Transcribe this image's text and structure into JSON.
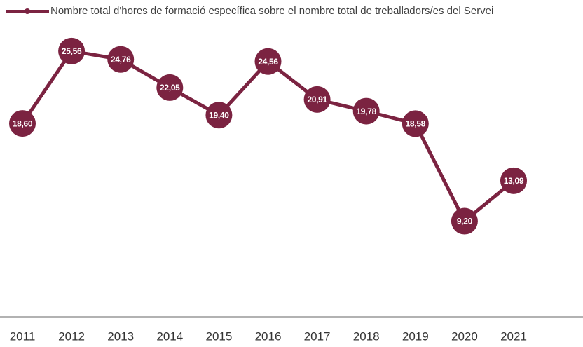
{
  "chart_data": {
    "type": "line",
    "categories": [
      "2011",
      "2012",
      "2013",
      "2014",
      "2015",
      "2016",
      "2017",
      "2018",
      "2019",
      "2020",
      "2021"
    ],
    "series": [
      {
        "name": "Nombre total d'hores de formació específica sobre el nombre total de treballadors/es del Servei",
        "color": "#7b2341",
        "values": [
          18.6,
          25.56,
          24.76,
          22.05,
          19.4,
          24.56,
          20.91,
          19.78,
          18.58,
          9.2,
          13.09
        ],
        "value_labels": [
          "18,60",
          "25,56",
          "24,76",
          "22,05",
          "19,40",
          "24,56",
          "20,91",
          "19,78",
          "18,58",
          "9,20",
          "13,09"
        ]
      }
    ],
    "ylim": [
      0,
      30
    ]
  }
}
